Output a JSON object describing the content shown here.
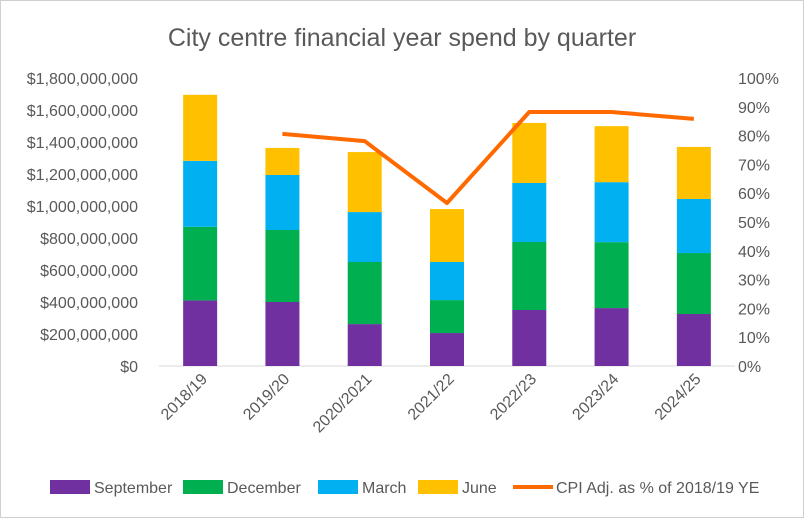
{
  "chart_data": {
    "type": "bar",
    "stacked": true,
    "title": "City centre financial  year spend by quarter",
    "categories": [
      "2018/19",
      "2019/20",
      "2020/2021",
      "2021/22",
      "2022/23",
      "2023/24",
      "2024/25"
    ],
    "series": [
      {
        "name": "September",
        "color": "#7030A0",
        "values": [
          410000000,
          400000000,
          262000000,
          206000000,
          350000000,
          362000000,
          325000000
        ]
      },
      {
        "name": "December",
        "color": "#00B050",
        "values": [
          460000000,
          450000000,
          388000000,
          206000000,
          425000000,
          412000000,
          381000000
        ]
      },
      {
        "name": "March",
        "color": "#00B0F0",
        "values": [
          412000000,
          344000000,
          312000000,
          238000000,
          369000000,
          375000000,
          338000000
        ]
      },
      {
        "name": "June",
        "color": "#FFC000",
        "values": [
          413000000,
          169000000,
          375000000,
          331000000,
          375000000,
          350000000,
          325000000
        ]
      }
    ],
    "line_series": {
      "name": "CPI Adj. as % of 2018/19 YE",
      "color": "#FF6A00",
      "axis": "right",
      "values": [
        null,
        80.6,
        78.1,
        56.6,
        88.2,
        88.2,
        85.8
      ]
    },
    "y_left": {
      "min": 0,
      "max": 1800000000,
      "ticks": [
        "$0",
        "$200,000,000",
        "$400,000,000",
        "$600,000,000",
        "$800,000,000",
        "$1,000,000,000",
        "$1,200,000,000",
        "$1,400,000,000",
        "$1,600,000,000",
        "$1,800,000,000"
      ]
    },
    "y_right": {
      "min": 0,
      "max": 100,
      "ticks": [
        "0%",
        "10%",
        "20%",
        "30%",
        "40%",
        "50%",
        "60%",
        "70%",
        "80%",
        "90%",
        "100%"
      ]
    },
    "grid": false,
    "legend_position": "bottom"
  }
}
